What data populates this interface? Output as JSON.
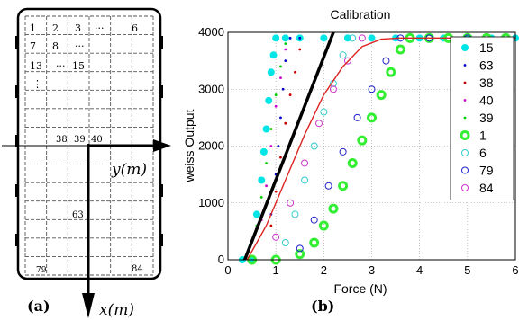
{
  "panel_a": {
    "label": "(a)",
    "axis_x_label": "x(m)",
    "axis_y_label": "y(m)",
    "cells": {
      "c1": "1",
      "c2": "2",
      "c3": "3",
      "c_dots1": "···",
      "c6": "6",
      "c7": "7",
      "c8": "8",
      "c_dots2": "···",
      "c13": "13",
      "c_dots3": "···",
      "c15": "15",
      "c_vdots": "⋮",
      "c38": "38",
      "c39": "39",
      "c40": "40",
      "c63": "63",
      "c79": "79",
      "c84": "84"
    }
  },
  "panel_b": {
    "label": "(b)"
  },
  "chart_data": {
    "type": "scatter",
    "title": "Calibration",
    "xlabel": "Force (N)",
    "ylabel": "weiss Output",
    "xlim": [
      0,
      6
    ],
    "ylim": [
      0,
      4000
    ],
    "xticks": [
      "0",
      "1",
      "2",
      "3",
      "4",
      "5",
      "6"
    ],
    "yticks": [
      "0",
      "1000",
      "2000",
      "3000",
      "4000"
    ],
    "grid": true,
    "legend_placement": "right",
    "series": [
      {
        "name": "15",
        "color": "#00e5e5",
        "marker": "filled-circle",
        "points": [
          [
            0.3,
            0
          ],
          [
            0.5,
            0
          ],
          [
            0.6,
            800
          ],
          [
            0.7,
            1400
          ],
          [
            0.75,
            1900
          ],
          [
            0.8,
            2300
          ],
          [
            0.85,
            2800
          ],
          [
            0.9,
            3300
          ],
          [
            0.95,
            3600
          ],
          [
            1.0,
            3900
          ],
          [
            1.2,
            3900
          ],
          [
            1.5,
            3900
          ],
          [
            2.0,
            3900
          ],
          [
            2.5,
            3900
          ],
          [
            3.0,
            3900
          ],
          [
            3.5,
            3900
          ],
          [
            4.0,
            3900
          ],
          [
            4.5,
            3900
          ],
          [
            5.0,
            3900
          ],
          [
            5.5,
            3900
          ],
          [
            6.0,
            3900
          ]
        ]
      },
      {
        "name": "63",
        "color": "#0000cc",
        "marker": "dot",
        "points": [
          [
            0.9,
            800
          ],
          [
            1.0,
            1500
          ],
          [
            1.05,
            2000
          ],
          [
            1.1,
            2500
          ],
          [
            1.15,
            3000
          ],
          [
            1.2,
            3500
          ],
          [
            1.3,
            3900
          ],
          [
            1.5,
            3900
          ]
        ]
      },
      {
        "name": "38",
        "color": "#cc0000",
        "marker": "dot",
        "points": [
          [
            0.9,
            600
          ],
          [
            1.0,
            1200
          ],
          [
            1.1,
            1800
          ],
          [
            1.2,
            2400
          ],
          [
            1.3,
            2900
          ],
          [
            1.4,
            3300
          ],
          [
            1.5,
            3700
          ]
        ]
      },
      {
        "name": "40",
        "color": "#cc00cc",
        "marker": "dot",
        "points": [
          [
            0.7,
            700
          ],
          [
            0.8,
            1300
          ],
          [
            0.9,
            2000
          ],
          [
            1.0,
            2700
          ],
          [
            1.1,
            3200
          ],
          [
            1.2,
            3700
          ]
        ]
      },
      {
        "name": "39",
        "color": "#00cc00",
        "marker": "dot",
        "points": [
          [
            0.6,
            600
          ],
          [
            0.7,
            1100
          ],
          [
            0.8,
            1700
          ],
          [
            0.9,
            2300
          ],
          [
            1.0,
            2900
          ],
          [
            1.1,
            3400
          ],
          [
            1.2,
            3800
          ]
        ]
      },
      {
        "name": "1",
        "color": "#33ee33",
        "marker": "thick-ring",
        "points": [
          [
            0.5,
            0
          ],
          [
            1.0,
            0
          ],
          [
            1.5,
            100
          ],
          [
            1.8,
            300
          ],
          [
            2.0,
            600
          ],
          [
            2.2,
            900
          ],
          [
            2.4,
            1300
          ],
          [
            2.6,
            1700
          ],
          [
            2.8,
            2100
          ],
          [
            3.0,
            2500
          ],
          [
            3.2,
            2900
          ],
          [
            3.4,
            3300
          ],
          [
            3.6,
            3700
          ],
          [
            3.8,
            3900
          ],
          [
            4.2,
            3900
          ],
          [
            4.6,
            3900
          ],
          [
            5.0,
            3900
          ],
          [
            5.4,
            3900
          ],
          [
            5.8,
            3900
          ]
        ]
      },
      {
        "name": "6",
        "color": "#33cccc",
        "marker": "ring",
        "points": [
          [
            1.2,
            300
          ],
          [
            1.4,
            800
          ],
          [
            1.6,
            1400
          ],
          [
            1.8,
            2000
          ],
          [
            2.0,
            2600
          ],
          [
            2.2,
            3100
          ],
          [
            2.4,
            3600
          ],
          [
            2.6,
            3900
          ]
        ]
      },
      {
        "name": "79",
        "color": "#2222cc",
        "marker": "ring",
        "points": [
          [
            1.5,
            200
          ],
          [
            1.8,
            700
          ],
          [
            2.1,
            1300
          ],
          [
            2.4,
            1900
          ],
          [
            2.7,
            2500
          ],
          [
            3.0,
            3000
          ],
          [
            3.3,
            3500
          ],
          [
            3.6,
            3900
          ],
          [
            4.2,
            3900
          ],
          [
            5.0,
            3900
          ]
        ]
      },
      {
        "name": "84",
        "color": "#cc33cc",
        "marker": "ring",
        "points": [
          [
            1.0,
            400
          ],
          [
            1.3,
            1000
          ],
          [
            1.6,
            1700
          ],
          [
            1.9,
            2400
          ],
          [
            2.2,
            3000
          ],
          [
            2.5,
            3500
          ],
          [
            2.8,
            3900
          ]
        ]
      }
    ],
    "lines": [
      {
        "color": "#000000",
        "points": [
          [
            0.35,
            0
          ],
          [
            2.2,
            4000
          ]
        ]
      },
      {
        "color": "#dd2222",
        "points": [
          [
            0.4,
            0
          ],
          [
            0.8,
            600
          ],
          [
            1.2,
            1400
          ],
          [
            1.6,
            2200
          ],
          [
            2.0,
            2900
          ],
          [
            2.4,
            3400
          ],
          [
            2.8,
            3750
          ],
          [
            3.2,
            3880
          ],
          [
            3.6,
            3900
          ],
          [
            4.5,
            3900
          ],
          [
            6.0,
            3900
          ]
        ]
      }
    ]
  }
}
